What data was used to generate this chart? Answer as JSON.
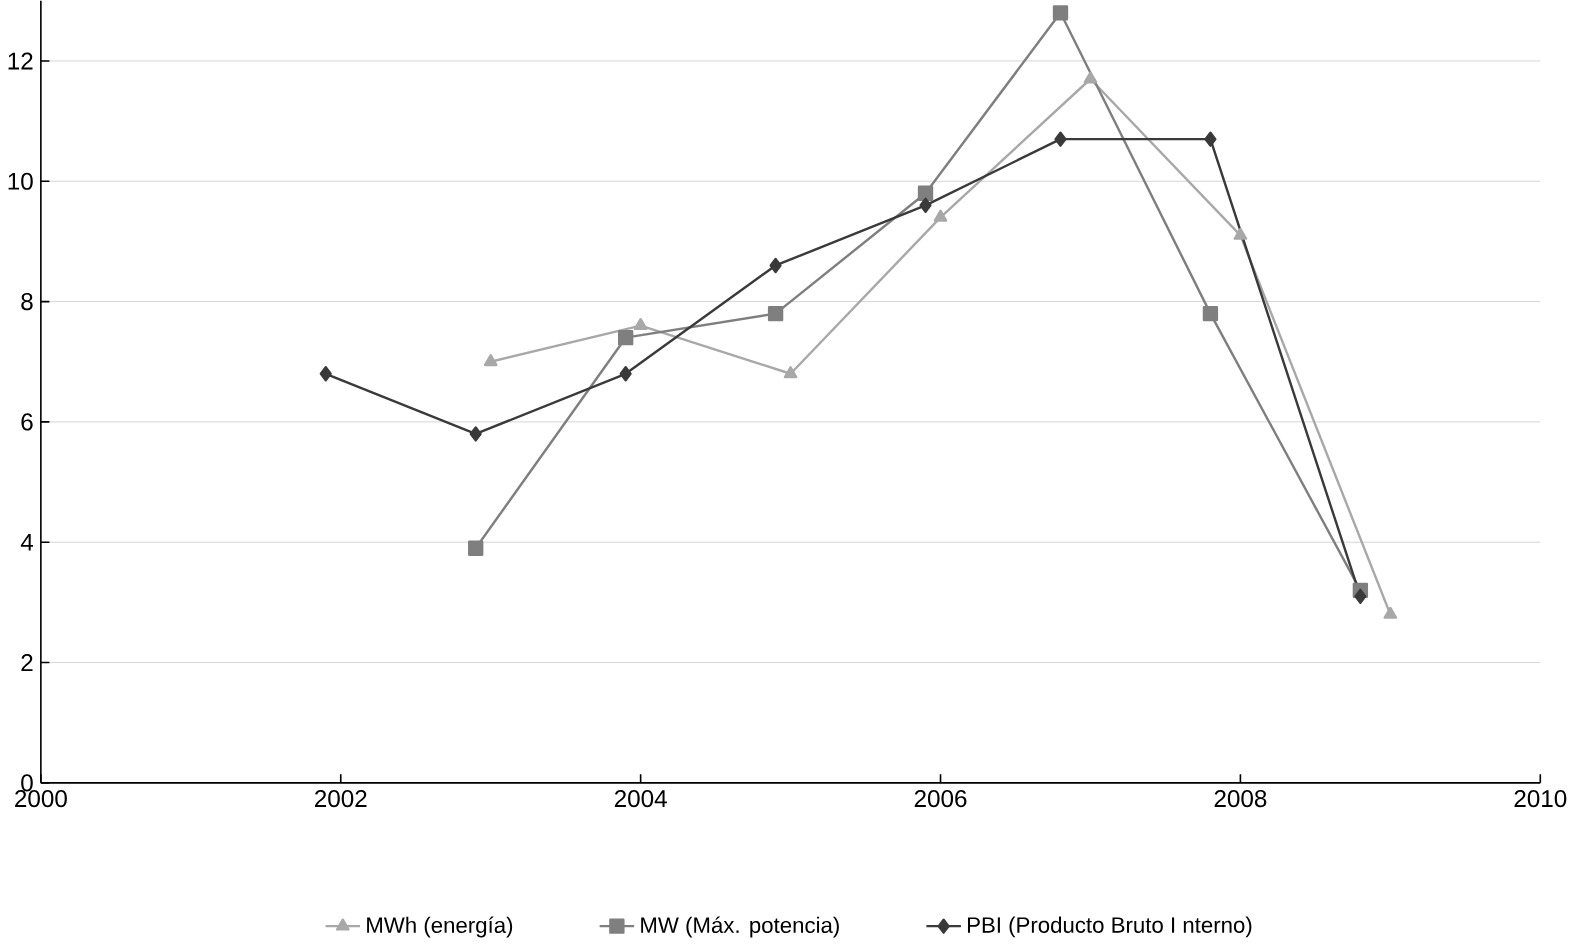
{
  "chart_data": {
    "type": "line",
    "xlim": [
      2000,
      2010
    ],
    "ylim": [
      0,
      13
    ],
    "xticks": [
      2000,
      2002,
      2004,
      2006,
      2008,
      2010
    ],
    "yticks": [
      0,
      2,
      4,
      6,
      8,
      10,
      12
    ],
    "grid": "y",
    "legend": "bottom",
    "series": [
      {
        "name": "MWh (energía)",
        "color": "#a8a8a8",
        "marker": "triangle",
        "x": [
          2003,
          2004,
          2005,
          2006,
          2007,
          2008,
          2009
        ],
        "values": [
          7.0,
          7.6,
          6.8,
          9.4,
          11.7,
          9.1,
          2.8
        ]
      },
      {
        "name": "MW (Máx. potencia)",
        "color": "#7f7f7f",
        "marker": "square",
        "x": [
          2002.9,
          2003.9,
          2004.9,
          2005.9,
          2006.8,
          2007.8,
          2008.8
        ],
        "values": [
          3.9,
          7.4,
          7.8,
          9.8,
          12.8,
          7.8,
          3.2
        ]
      },
      {
        "name": "PBI (Producto Bruto I nterno)",
        "color": "#3a3a3a",
        "marker": "diamond",
        "x": [
          2001.9,
          2002.9,
          2003.9,
          2004.9,
          2005.9,
          2006.8,
          2007.8,
          2008.8
        ],
        "values": [
          6.8,
          5.8,
          6.8,
          8.6,
          9.6,
          10.7,
          10.7,
          3.1
        ]
      }
    ]
  }
}
